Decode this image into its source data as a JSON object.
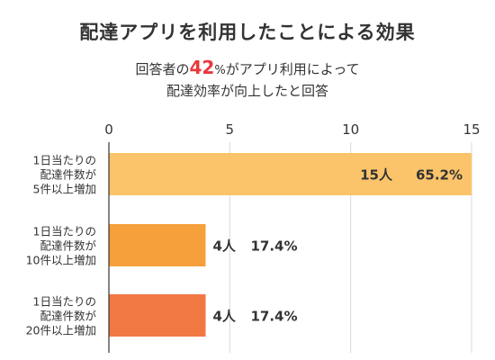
{
  "title": "配達アプリを利用したことによる効果",
  "subtitle": {
    "line1_before": "回答者の",
    "highlight_number": "42",
    "highlight_unit": "%",
    "line1_after": "がアプリ利用によって",
    "line2": "配達効率が向上したと回答"
  },
  "colors": {
    "highlight": "#e8383d",
    "grid": "#d9d9d9",
    "axis": "#333333"
  },
  "chart_data": {
    "type": "bar",
    "orientation": "horizontal",
    "categories": [
      [
        "1日当たりの",
        "配達件数が",
        "5件以上増加"
      ],
      [
        "1日当たりの",
        "配達件数が",
        "10件以上増加"
      ],
      [
        "1日当たりの",
        "配達件数が",
        "20件以上増加"
      ]
    ],
    "values": [
      15,
      4,
      4
    ],
    "count_labels": [
      "15人",
      "4人",
      "4人"
    ],
    "percent_labels": [
      "65.2%",
      "17.4%",
      "17.4%"
    ],
    "colors": [
      "#fbc46b",
      "#f5a03b",
      "#f27843"
    ],
    "xlim": [
      0,
      15
    ],
    "xticks": [
      "0",
      "5",
      "10",
      "15"
    ],
    "xtick_values": [
      0,
      5,
      10,
      15
    ],
    "tick_position": "top",
    "grid": true,
    "title": "配達アプリを利用したことによる効果",
    "xlabel": "",
    "ylabel": ""
  }
}
